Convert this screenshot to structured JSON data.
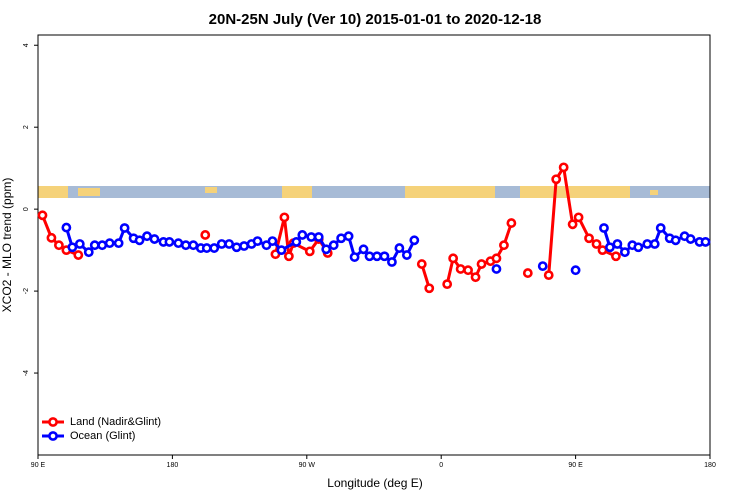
{
  "chart_data": {
    "type": "line",
    "title": "20N-25N July (Ver 10)   2015-01-01 to 2020-12-18",
    "x_label": "Longitude (deg E)",
    "y_label": "XCO2 - MLO trend (ppm)",
    "xlim": [
      90,
      540
    ],
    "ylim": [
      -6,
      4.25
    ],
    "xticks": [
      {
        "value": 90,
        "label": "90 E"
      },
      180,
      {
        "value": 270,
        "label": "90 W"
      },
      {
        "value": 360,
        "label": "0"
      },
      {
        "value": 450,
        "label": "90 E"
      },
      {
        "value": 540,
        "label": "180"
      }
    ],
    "yticks": [
      -4,
      -2,
      0,
      2,
      4
    ],
    "legend": "bottom-left",
    "series": [
      {
        "name": "Land (Nadir&Glint)",
        "color": "#ff0000",
        "x": [
          93,
          99,
          104,
          109,
          117,
          null,
          202,
          null,
          249,
          255,
          258,
          261,
          272,
          278,
          284,
          null,
          347,
          352,
          null,
          364,
          368,
          373,
          378,
          383,
          387,
          393,
          397,
          402,
          407,
          null,
          418,
          null,
          432,
          437,
          442,
          448,
          452,
          459,
          464,
          468,
          477
        ],
        "values": [
          -0.15,
          -0.7,
          -0.88,
          -1.0,
          -1.12,
          null,
          -0.63,
          null,
          -1.1,
          -0.2,
          -1.15,
          -0.83,
          -1.03,
          -0.73,
          -1.07,
          null,
          -1.34,
          -1.93,
          null,
          -1.83,
          -1.2,
          -1.46,
          -1.49,
          -1.66,
          -1.34,
          -1.27,
          -1.2,
          -0.88,
          -0.34,
          null,
          -1.56,
          null,
          -1.61,
          0.73,
          1.02,
          -0.37,
          -0.2,
          -0.71,
          -0.85,
          -1.0,
          -1.15
        ]
      },
      {
        "name": "Ocean (Glint)",
        "color": "#0000ff",
        "x": [
          109,
          113,
          118,
          124,
          128,
          133,
          138,
          144,
          148,
          154,
          158,
          163,
          168,
          174,
          178,
          184,
          189,
          194,
          199,
          203,
          208,
          213,
          218,
          223,
          228,
          233,
          237,
          243,
          247,
          253,
          263,
          267,
          273,
          278,
          283,
          288,
          293,
          298,
          302,
          308,
          312,
          317,
          322,
          327,
          332,
          337,
          342,
          null,
          397,
          null,
          428,
          null,
          450,
          null,
          469,
          473,
          478,
          483,
          488,
          492,
          498,
          503,
          507,
          513,
          517,
          523,
          527,
          533,
          537
        ],
        "values": [
          -0.45,
          -0.93,
          -0.85,
          -1.05,
          -0.88,
          -0.88,
          -0.83,
          -0.83,
          -0.46,
          -0.71,
          -0.76,
          -0.66,
          -0.73,
          -0.8,
          -0.8,
          -0.83,
          -0.88,
          -0.88,
          -0.95,
          -0.95,
          -0.95,
          -0.85,
          -0.85,
          -0.93,
          -0.9,
          -0.85,
          -0.78,
          -0.88,
          -0.78,
          -1.0,
          -0.8,
          -0.63,
          -0.68,
          -0.68,
          -0.98,
          -0.88,
          -0.71,
          -0.66,
          -1.17,
          -0.98,
          -1.15,
          -1.15,
          -1.15,
          -1.29,
          -0.95,
          -1.12,
          -0.76,
          null,
          -1.46,
          null,
          -1.39,
          null,
          -1.49,
          null,
          -0.46,
          -0.93,
          -0.85,
          -1.05,
          -0.88,
          -0.93,
          -0.85,
          -0.85,
          -0.46,
          -0.71,
          -0.76,
          -0.66,
          -0.73,
          -0.8,
          -0.8
        ]
      }
    ]
  }
}
